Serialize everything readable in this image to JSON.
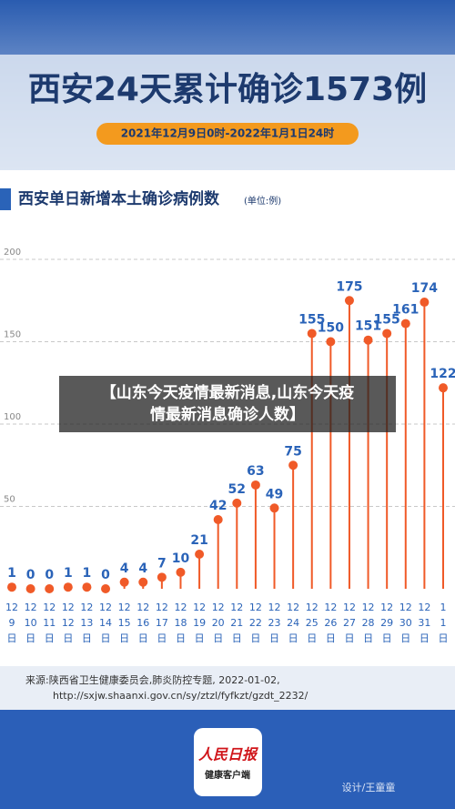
{
  "chart_data": {
    "type": "lollipop",
    "title": "西安24天累计确诊1573例",
    "subtitle": "2021年12月9日0时-2022年1月1日24时",
    "chart_title": "西安单日新增本土确诊病例数",
    "unit": "(单位:例)",
    "categories": [
      [
        "12",
        "9",
        "日"
      ],
      [
        "12",
        "10",
        "日"
      ],
      [
        "12",
        "11",
        "日"
      ],
      [
        "12",
        "12",
        "日"
      ],
      [
        "12",
        "13",
        "日"
      ],
      [
        "12",
        "14",
        "日"
      ],
      [
        "12",
        "15",
        "日"
      ],
      [
        "12",
        "16",
        "日"
      ],
      [
        "12",
        "17",
        "日"
      ],
      [
        "12",
        "18",
        "日"
      ],
      [
        "12",
        "19",
        "日"
      ],
      [
        "12",
        "20",
        "日"
      ],
      [
        "12",
        "21",
        "日"
      ],
      [
        "12",
        "22",
        "日"
      ],
      [
        "12",
        "23",
        "日"
      ],
      [
        "12",
        "24",
        "日"
      ],
      [
        "12",
        "25",
        "日"
      ],
      [
        "12",
        "26",
        "日"
      ],
      [
        "12",
        "27",
        "日"
      ],
      [
        "12",
        "28",
        "日"
      ],
      [
        "12",
        "29",
        "日"
      ],
      [
        "12",
        "30",
        "日"
      ],
      [
        "12",
        "31",
        "日"
      ],
      [
        "1",
        "1",
        "日"
      ]
    ],
    "values": [
      1,
      0,
      0,
      1,
      1,
      0,
      4,
      4,
      7,
      10,
      21,
      42,
      52,
      63,
      49,
      75,
      155,
      150,
      175,
      151,
      155,
      161,
      174,
      122
    ],
    "color": "#f05a28",
    "label_color": "#2a63b8",
    "ylim": [
      0,
      200
    ],
    "yticks": [
      50,
      100,
      150,
      200
    ],
    "grid": true
  },
  "caption": [
    "【山东今天疫情最新消息,山东今天疫",
    "情最新消息确诊人数】"
  ],
  "source": [
    "来源:陕西省卫生健康委员会,肺炎防控专题, 2022-01-02,",
    "http://sxjw.shaanxi.gov.cn/sy/ztzl/fyfkzt/gzdt_2232/"
  ],
  "logo": [
    "人民日报",
    "健康客户端"
  ],
  "designer": "设计/王童童"
}
